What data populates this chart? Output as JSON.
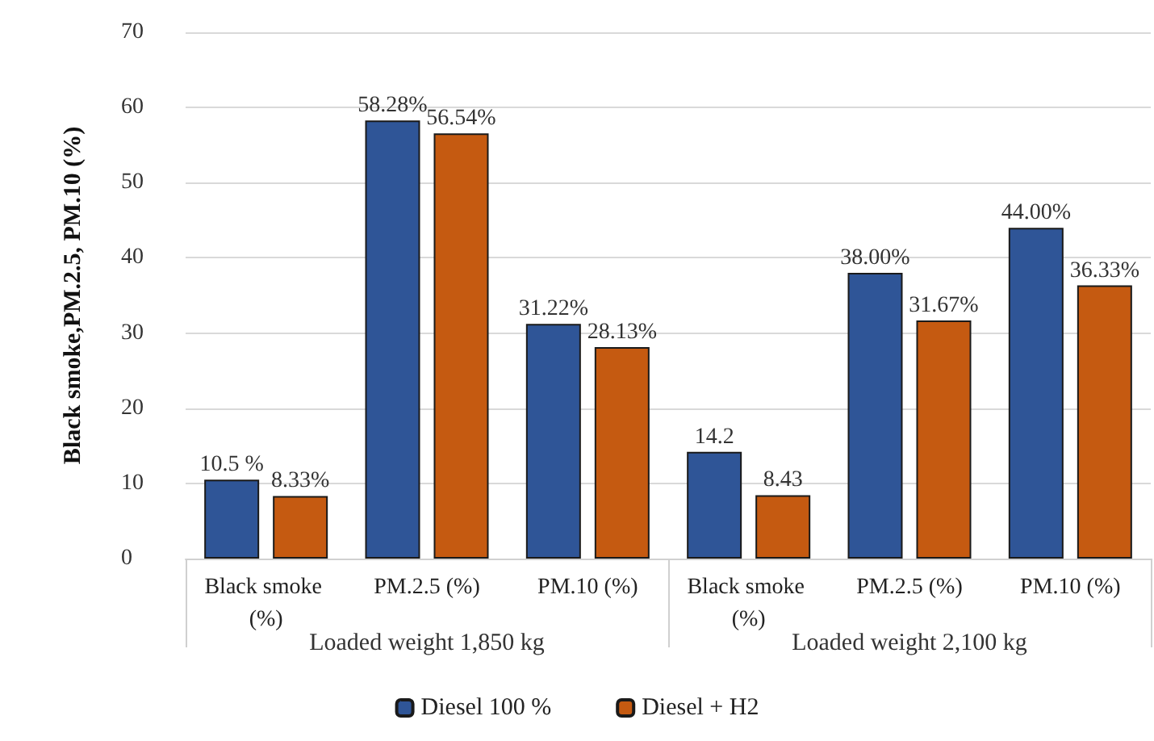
{
  "chart_data": {
    "type": "bar",
    "ylabel": "Black smoke,PM.2.5, PM.10 (%)",
    "categories": [
      "Black smoke (%)",
      "PM.2.5 (%)",
      "PM.10 (%)",
      "Black smoke (%)",
      "PM.2.5 (%)",
      "PM.10 (%)"
    ],
    "series": [
      {
        "name": "Diesel 100 %",
        "color": "#2f5597",
        "values": [
          10.5,
          58.28,
          31.22,
          14.2,
          38.0,
          44.0
        ],
        "value_labels": [
          "10.5 %",
          "58.28%",
          "31.22%",
          "14.2",
          "38.00%",
          "44.00%"
        ]
      },
      {
        "name": "Diesel + H2",
        "color": "#c55a11",
        "values": [
          8.33,
          56.54,
          28.13,
          8.43,
          31.67,
          36.33
        ],
        "value_labels": [
          "8.33%",
          "56.54%",
          "28.13%",
          "8.43",
          "31.67%",
          "36.33%"
        ]
      }
    ],
    "annotations": [
      "Loaded weight 1,850 kg",
      "Loaded weight 2,100 kg"
    ],
    "ylim": [
      0,
      70
    ],
    "yticks": [
      0,
      10,
      20,
      30,
      40,
      50,
      60,
      70
    ],
    "grid": "y",
    "legend": "bottom"
  }
}
